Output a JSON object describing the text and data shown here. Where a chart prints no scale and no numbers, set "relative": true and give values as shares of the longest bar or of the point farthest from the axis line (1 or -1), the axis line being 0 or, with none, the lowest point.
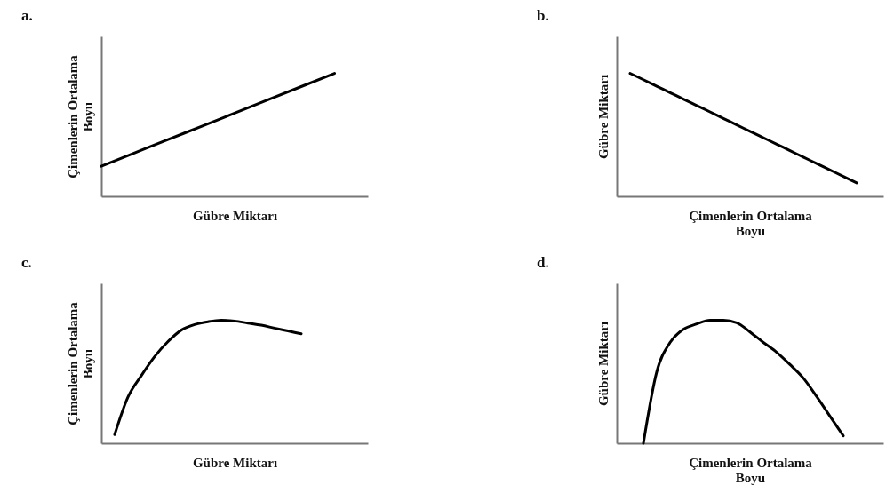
{
  "chart_data": [
    {
      "type": "line",
      "title": "a.",
      "xlabel": "Gübre Miktarı",
      "ylabel": "Çimenlerin Ortalama\nBoyu",
      "relative": true,
      "tick_labels": false,
      "categories": [
        null,
        null,
        null,
        null,
        null,
        null,
        null,
        null,
        null
      ],
      "series": [
        {
          "color": "#000000",
          "values": [
            0.245,
            0.353,
            0.461,
            0.568,
            0.676,
            0.784,
            0.892,
            1,
            null
          ]
        }
      ]
    },
    {
      "type": "line",
      "title": "b.",
      "xlabel": "Çimenlerin Ortalama\nBoyu",
      "ylabel": "Gübre Miktarı",
      "relative": true,
      "tick_labels": false,
      "categories": [
        null,
        null,
        null,
        null,
        null,
        null,
        null,
        null,
        null,
        null,
        null,
        null,
        null,
        null,
        null,
        null,
        null,
        null,
        null,
        null,
        null
      ],
      "series": [
        {
          "color": "#000000",
          "values": [
            null,
            1,
            0.948,
            0.895,
            0.843,
            0.79,
            0.738,
            0.686,
            0.633,
            0.581,
            0.528,
            0.476,
            0.424,
            0.371,
            0.319,
            0.266,
            0.214,
            0.162,
            0.109,
            null,
            null
          ]
        }
      ]
    },
    {
      "type": "line",
      "title": "c.",
      "xlabel": "Gübre Miktarı",
      "ylabel": "Çimenlerin Ortalama\nBoyu",
      "relative": true,
      "tick_labels": false,
      "categories": [
        null,
        null,
        null,
        null,
        null,
        null,
        null,
        null,
        null,
        null,
        null,
        null,
        null,
        null,
        null,
        null,
        null,
        null,
        null,
        null,
        null
      ],
      "series": [
        {
          "color": "#000000",
          "values": [
            null,
            0.07,
            0.376,
            0.55,
            0.705,
            0.827,
            0.92,
            0.965,
            0.988,
            1,
            0.994,
            0.977,
            0.96,
            0.936,
            0.913,
            0.89,
            null,
            null,
            null,
            null,
            null
          ]
        }
      ]
    },
    {
      "type": "line",
      "title": "d.",
      "xlabel": "Çimenlerin Ortalama\nBoyu",
      "ylabel": "Gübre Miktarı",
      "relative": true,
      "tick_labels": false,
      "categories": [
        null,
        null,
        null,
        null,
        null,
        null,
        null,
        null,
        null,
        null,
        null,
        null,
        null,
        null,
        null,
        null,
        null,
        null,
        null,
        null,
        null
      ],
      "series": [
        {
          "color": "#000000",
          "values": [
            null,
            null,
            0,
            0.58,
            0.82,
            0.926,
            0.97,
            1,
            1,
            0.98,
            0.905,
            0.82,
            0.74,
            0.64,
            0.53,
            0.38,
            0.22,
            0.06,
            null,
            null,
            null
          ]
        }
      ]
    }
  ]
}
